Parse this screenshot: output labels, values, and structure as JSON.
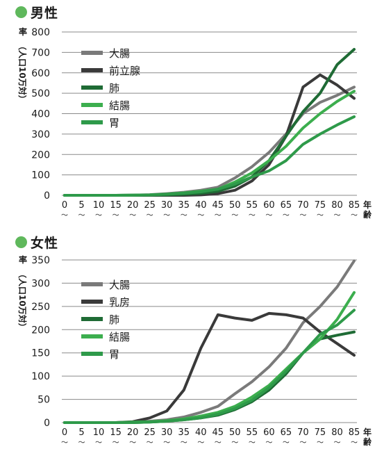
{
  "chart_data": [
    {
      "type": "line",
      "title": "男性",
      "ylabel": "率（人口10万対）",
      "xlabel": "年齢",
      "ylim": [
        0,
        800
      ],
      "y_ticks": [
        "0",
        "100",
        "200",
        "300",
        "400",
        "500",
        "600",
        "700",
        "800"
      ],
      "x": [
        "0",
        "5",
        "10",
        "15",
        "20",
        "25",
        "30",
        "35",
        "40",
        "45",
        "50",
        "55",
        "60",
        "65",
        "70",
        "75",
        "80",
        "85"
      ],
      "x_tick_suffix": "〜",
      "grid": true,
      "legend_position": "top-left",
      "series": [
        {
          "name": "大腸",
          "color": "#7a7a7a",
          "values": [
            0,
            0,
            0,
            0,
            1,
            3,
            8,
            15,
            25,
            40,
            85,
            140,
            210,
            300,
            400,
            455,
            490,
            530
          ]
        },
        {
          "name": "前立腺",
          "color": "#3a3a3a",
          "values": [
            0,
            0,
            0,
            0,
            0,
            0,
            0,
            0,
            2,
            8,
            25,
            70,
            150,
            290,
            530,
            590,
            540,
            475
          ]
        },
        {
          "name": "肺",
          "color": "#1f6b35",
          "values": [
            0,
            0,
            0,
            0,
            0,
            1,
            2,
            5,
            10,
            20,
            45,
            90,
            170,
            290,
            410,
            500,
            640,
            715
          ]
        },
        {
          "name": "結腸",
          "color": "#3cae4e",
          "values": [
            0,
            0,
            0,
            0,
            1,
            2,
            6,
            12,
            20,
            30,
            65,
            110,
            170,
            240,
            330,
            400,
            460,
            510
          ]
        },
        {
          "name": "胃",
          "color": "#2e9a4a",
          "values": [
            0,
            0,
            0,
            0,
            1,
            2,
            5,
            10,
            17,
            30,
            55,
            90,
            120,
            170,
            250,
            300,
            345,
            385
          ]
        }
      ]
    },
    {
      "type": "line",
      "title": "女性",
      "ylabel": "率（人口10万対）",
      "xlabel": "年齢",
      "ylim": [
        0,
        350
      ],
      "y_ticks": [
        "0",
        "50",
        "100",
        "150",
        "200",
        "250",
        "300",
        "350"
      ],
      "x": [
        "0",
        "5",
        "10",
        "15",
        "20",
        "25",
        "30",
        "35",
        "40",
        "45",
        "50",
        "55",
        "60",
        "65",
        "70",
        "75",
        "80",
        "85"
      ],
      "x_tick_suffix": "〜",
      "grid": true,
      "legend_position": "top-left",
      "series": [
        {
          "name": "大腸",
          "color": "#7a7a7a",
          "values": [
            0,
            0,
            0,
            0,
            1,
            3,
            6,
            12,
            22,
            35,
            62,
            88,
            120,
            160,
            215,
            250,
            292,
            348
          ]
        },
        {
          "name": "乳房",
          "color": "#3a3a3a",
          "values": [
            0,
            0,
            0,
            0,
            2,
            10,
            25,
            70,
            160,
            232,
            225,
            220,
            235,
            232,
            225,
            195,
            170,
            145
          ]
        },
        {
          "name": "肺",
          "color": "#1f6b35",
          "values": [
            0,
            0,
            0,
            0,
            0,
            1,
            3,
            6,
            10,
            16,
            28,
            45,
            70,
            105,
            150,
            180,
            188,
            195
          ]
        },
        {
          "name": "結腸",
          "color": "#3cae4e",
          "values": [
            0,
            0,
            0,
            0,
            1,
            2,
            4,
            8,
            14,
            22,
            35,
            55,
            80,
            115,
            150,
            180,
            222,
            280
          ]
        },
        {
          "name": "胃",
          "color": "#2e9a4a",
          "values": [
            0,
            0,
            0,
            0,
            0,
            1,
            3,
            6,
            10,
            18,
            30,
            48,
            75,
            110,
            150,
            190,
            210,
            242
          ]
        }
      ]
    }
  ]
}
